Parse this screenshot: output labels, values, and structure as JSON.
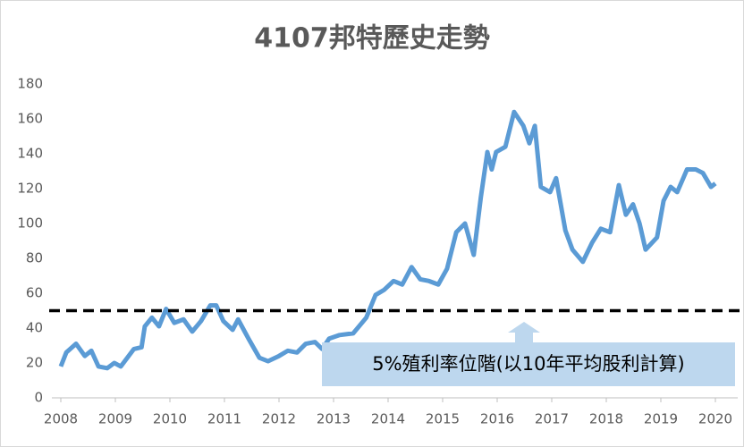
{
  "chart_data": {
    "type": "line",
    "title": "4107邦特歷史走勢",
    "series": [
      {
        "name": "4107",
        "color": "#5b9bd5",
        "x": [
          2008.0,
          2008.1,
          2008.28,
          2008.44,
          2008.56,
          2008.69,
          2008.85,
          2008.98,
          2009.1,
          2009.34,
          2009.48,
          2009.54,
          2009.67,
          2009.8,
          2009.93,
          2010.08,
          2010.25,
          2010.41,
          2010.57,
          2010.74,
          2010.85,
          2010.98,
          2011.15,
          2011.25,
          2011.44,
          2011.64,
          2011.8,
          2012.0,
          2012.16,
          2012.33,
          2012.49,
          2012.66,
          2012.79,
          2012.92,
          2013.11,
          2013.36,
          2013.6,
          2013.77,
          2013.93,
          2014.1,
          2014.26,
          2014.43,
          2014.59,
          2014.75,
          2014.92,
          2015.08,
          2015.25,
          2015.41,
          2015.57,
          2015.7,
          2015.82,
          2015.9,
          2015.98,
          2016.15,
          2016.31,
          2016.48,
          2016.59,
          2016.69,
          2016.8,
          2016.97,
          2017.08,
          2017.25,
          2017.38,
          2017.57,
          2017.74,
          2017.9,
          2018.07,
          2018.23,
          2018.36,
          2018.49,
          2018.61,
          2018.72,
          2018.93,
          2019.05,
          2019.18,
          2019.3,
          2019.48,
          2019.64,
          2019.77,
          2019.92,
          2020.0
        ],
        "values": [
          18,
          26,
          31,
          24,
          27,
          18,
          17,
          20,
          18,
          28,
          29,
          41,
          46,
          41,
          51,
          43,
          45,
          38,
          44,
          53,
          53,
          44,
          39,
          45,
          34,
          23,
          21,
          24,
          27,
          26,
          31,
          32,
          28,
          34,
          36,
          37,
          46,
          59,
          62,
          67,
          65,
          75,
          68,
          67,
          65,
          74,
          95,
          100,
          82,
          115,
          141,
          131,
          141,
          144,
          164,
          156,
          146,
          156,
          121,
          118,
          126,
          96,
          85,
          78,
          89,
          97,
          95,
          122,
          105,
          111,
          100,
          85,
          92,
          113,
          121,
          118,
          131,
          131,
          129,
          121,
          123
        ]
      }
    ],
    "xlim": [
      2008,
      2020
    ],
    "xticks": [
      2008,
      2009,
      2010,
      2011,
      2012,
      2013,
      2014,
      2015,
      2016,
      2017,
      2018,
      2019,
      2020
    ],
    "ylim": [
      0,
      180
    ],
    "yticks": [
      0,
      20,
      40,
      60,
      80,
      100,
      120,
      140,
      160,
      180
    ],
    "reference_line": 50,
    "annotation": "5%殖利率位階(以10年平均股利計算)"
  }
}
